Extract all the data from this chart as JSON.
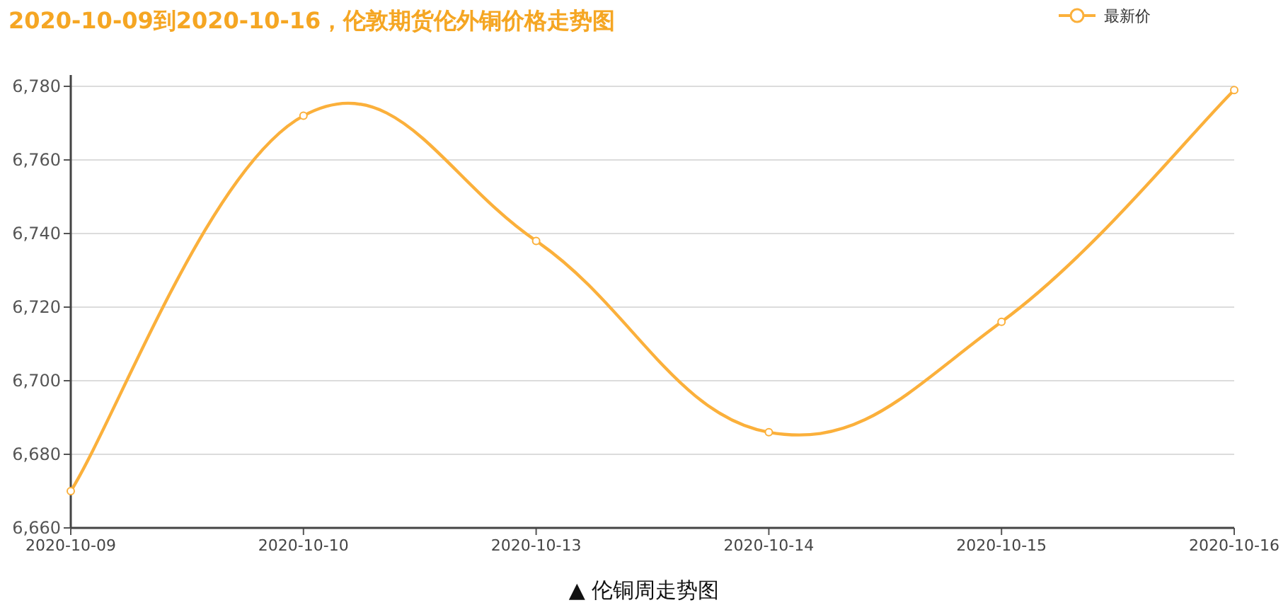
{
  "chart_data": {
    "type": "line",
    "title": "2020-10-09到2020-10-16，伦敦期货伦外铜价格走势图",
    "categories": [
      "2020-10-09",
      "2020-10-10",
      "2020-10-13",
      "2020-10-14",
      "2020-10-15",
      "2020-10-16"
    ],
    "series": [
      {
        "name": "最新价",
        "color": "#fbb03b",
        "values": [
          6670,
          6772,
          6738,
          6686,
          6716,
          6779
        ]
      }
    ],
    "ylim": [
      6660,
      6780
    ],
    "yticks": [
      {
        "value": 6660,
        "label": "6,660"
      },
      {
        "value": 6680,
        "label": "6,680"
      },
      {
        "value": 6700,
        "label": "6,700"
      },
      {
        "value": 6720,
        "label": "6,720"
      },
      {
        "value": 6740,
        "label": "6,740"
      },
      {
        "value": 6760,
        "label": "6,760"
      },
      {
        "value": 6780,
        "label": "6,780"
      }
    ],
    "grid": "y",
    "legend": "top right",
    "marker": "circle",
    "line_style": "solid",
    "annotations": [
      "▲ 伦铜周走势图"
    ]
  }
}
